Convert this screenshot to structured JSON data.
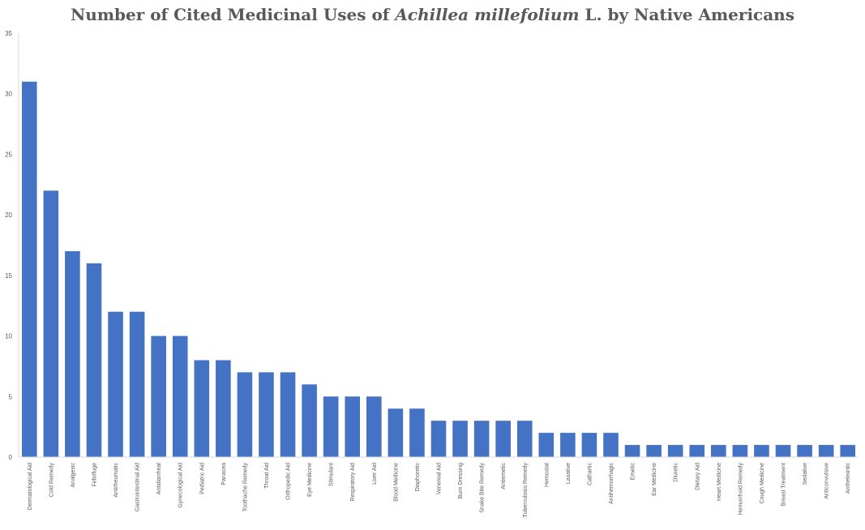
{
  "chart_data": {
    "type": "bar",
    "title_parts": {
      "prefix": "Number of Cited Medicinal Uses of ",
      "italic": "Achillea millefolium",
      "suffix": " L. by Native Americans"
    },
    "xlabel": "",
    "ylabel": "",
    "ylim": [
      0,
      35
    ],
    "yticks": [
      0,
      5,
      10,
      15,
      20,
      25,
      30,
      35
    ],
    "grid": false,
    "bar_color": "#4472C4",
    "categories": [
      "Dermatological Aid",
      "Cold Remedy",
      "Analgesic",
      "Febrifuge",
      "Antirheumatic",
      "Gastrointestinal Aid",
      "Antidiarrheal",
      "Gynecological Aid",
      "Pediatric Aid",
      "Panacea",
      "Toothache Remedy",
      "Throat Aid",
      "Orthopedic Aid",
      "Eye Medicine",
      "Stimulant",
      "Respiratory Aid",
      "Liver Aid",
      "Blood Medicine",
      "Diaphoretic",
      "Venereal Aid",
      "Burn Dressing",
      "Snake Bite Remedy",
      "Antiemetic",
      "Tuberculosis Remedy",
      "Hemostat",
      "Laxative",
      "Cathartic",
      "Antihemorrhagic",
      "Emetic",
      "Ear Medicine",
      "Diuretic",
      "Dietary Aid",
      "Heart Medicine",
      "Hemorrhoid Remedy",
      "Cough Medicine",
      "Breast Treatment",
      "Sedative",
      "Anticonvulsive",
      "Anthelmintic"
    ],
    "values": [
      31,
      22,
      17,
      16,
      12,
      12,
      10,
      10,
      8,
      8,
      7,
      7,
      7,
      6,
      5,
      5,
      5,
      4,
      4,
      3,
      3,
      3,
      3,
      3,
      2,
      2,
      2,
      2,
      1,
      1,
      1,
      1,
      1,
      1,
      1,
      1,
      1,
      1,
      1
    ]
  }
}
